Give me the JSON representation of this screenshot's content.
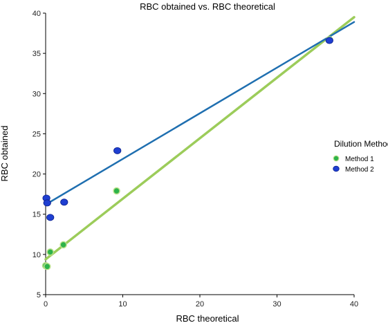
{
  "chart_data": {
    "type": "scatter",
    "title": "RBC obtained vs. RBC theoretical",
    "xlabel": "RBC theoretical",
    "ylabel": "RBC obtained",
    "xlim": [
      0,
      40
    ],
    "ylim": [
      5,
      40
    ],
    "x_ticks": [
      0,
      10,
      20,
      30,
      40
    ],
    "y_ticks": [
      5,
      10,
      15,
      20,
      25,
      30,
      35,
      40
    ],
    "grid": false,
    "legend": {
      "title": "Dilution Method",
      "position": "right"
    },
    "series": [
      {
        "name": "Method 1",
        "color": "#2db34a",
        "line_color": "#9ccc5a",
        "points": [
          {
            "x": 0.0,
            "y": 8.6
          },
          {
            "x": 0.2,
            "y": 8.5
          },
          {
            "x": 0.6,
            "y": 10.3
          },
          {
            "x": 2.3,
            "y": 11.2
          },
          {
            "x": 9.2,
            "y": 17.9
          },
          {
            "x": 36.8,
            "y": 36.7
          }
        ],
        "fit_line": [
          {
            "x": 0,
            "y": 9.4
          },
          {
            "x": 40,
            "y": 39.5
          }
        ]
      },
      {
        "name": "Method 2",
        "color": "#1f3fd1",
        "line_color": "#1f6fb0",
        "points": [
          {
            "x": 0.1,
            "y": 17.0
          },
          {
            "x": 0.2,
            "y": 16.4
          },
          {
            "x": 0.6,
            "y": 14.6
          },
          {
            "x": 2.4,
            "y": 16.5
          },
          {
            "x": 9.3,
            "y": 22.9
          },
          {
            "x": 36.8,
            "y": 36.6
          }
        ],
        "fit_line": [
          {
            "x": 0,
            "y": 16.2
          },
          {
            "x": 40,
            "y": 38.9
          }
        ]
      }
    ]
  }
}
